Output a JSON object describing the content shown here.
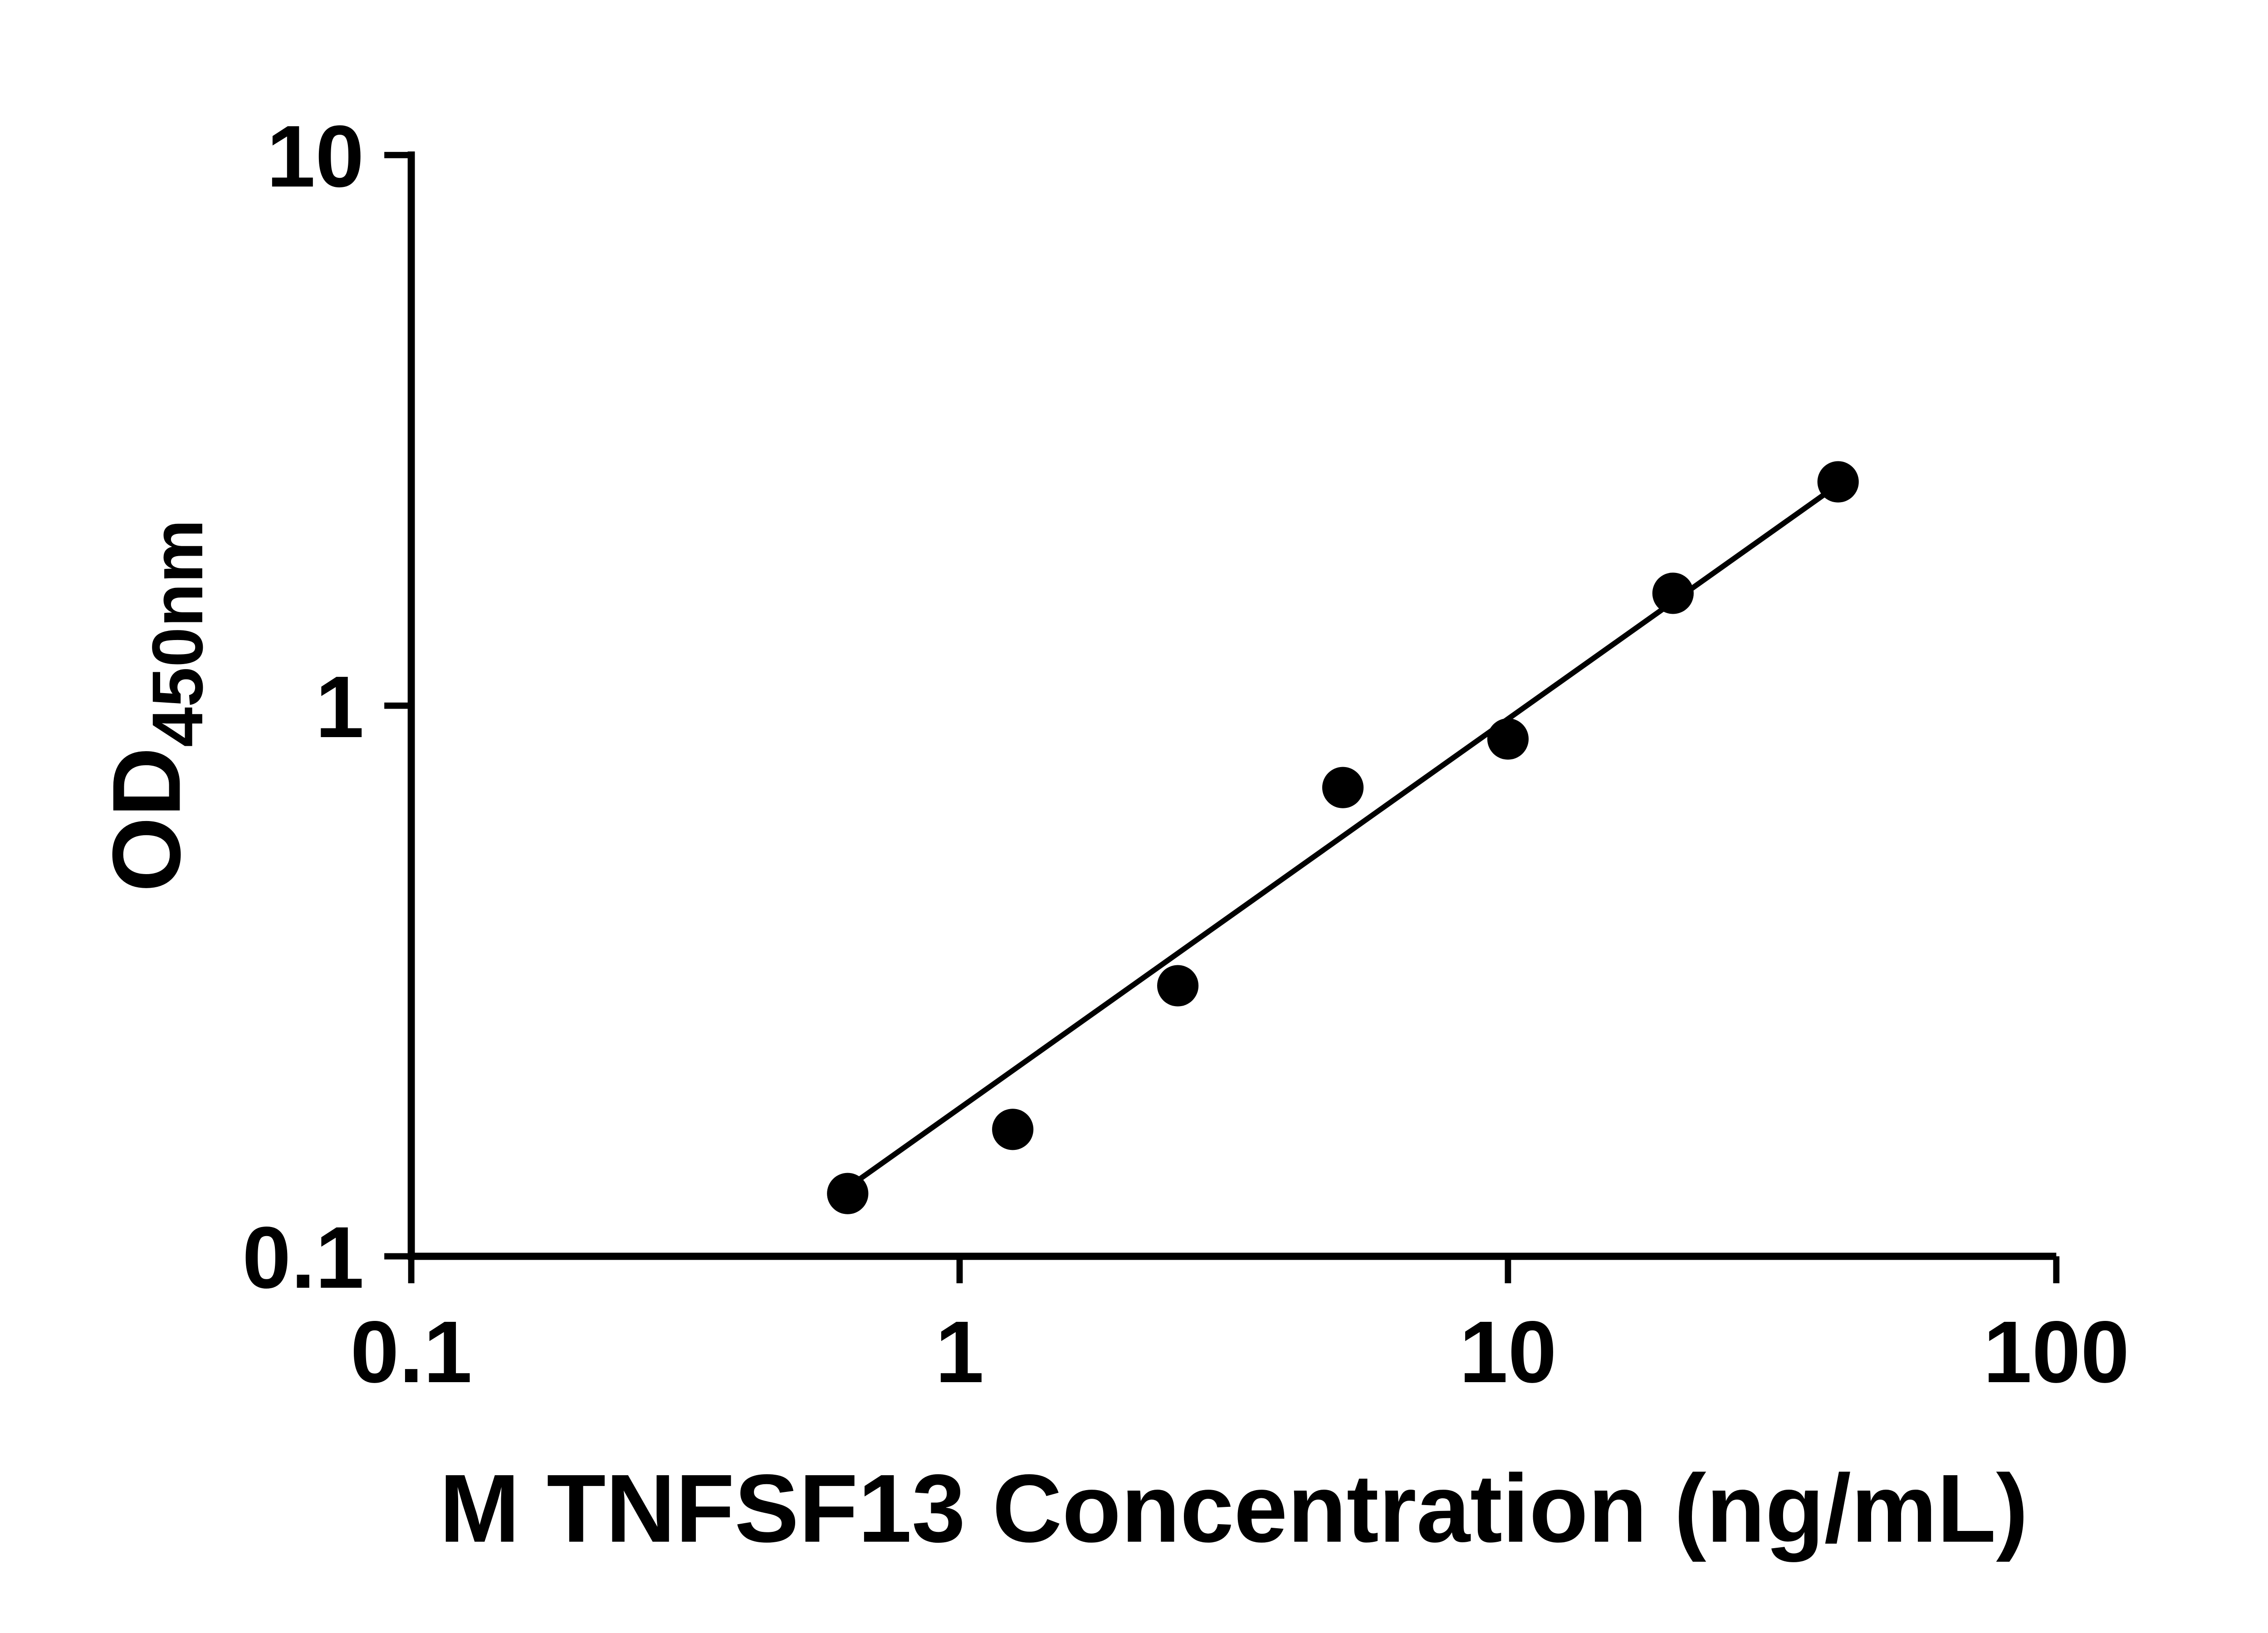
{
  "page": {
    "background": "#ffffff"
  },
  "chart_data": {
    "type": "scatter",
    "title": "",
    "xlabel": "M TNFSF13 Concentration (ng/mL)",
    "ylabel_main": "OD",
    "ylabel_sub": "450nm",
    "x_scale": "log",
    "y_scale": "log",
    "xlim": [
      0.1,
      100
    ],
    "ylim": [
      0.1,
      10
    ],
    "grid": false,
    "legend": "none",
    "x_ticks": [
      {
        "value": 0.1,
        "label": "0.1"
      },
      {
        "value": 1,
        "label": "1"
      },
      {
        "value": 10,
        "label": "10"
      },
      {
        "value": 100,
        "label": "100"
      }
    ],
    "y_ticks": [
      {
        "value": 0.1,
        "label": "0.1"
      },
      {
        "value": 1,
        "label": "1"
      },
      {
        "value": 10,
        "label": "10"
      }
    ],
    "points": [
      {
        "x": 0.625,
        "y": 0.13
      },
      {
        "x": 1.25,
        "y": 0.17
      },
      {
        "x": 2.5,
        "y": 0.31
      },
      {
        "x": 5,
        "y": 0.71
      },
      {
        "x": 10,
        "y": 0.87
      },
      {
        "x": 20,
        "y": 1.6
      },
      {
        "x": 40,
        "y": 2.55
      }
    ],
    "trend_line": {
      "x1": 0.63,
      "y1": 0.134,
      "x2": 40,
      "y2": 2.52
    },
    "marker_color": "#000000",
    "line_color": "#000000",
    "axis_color": "#000000"
  }
}
